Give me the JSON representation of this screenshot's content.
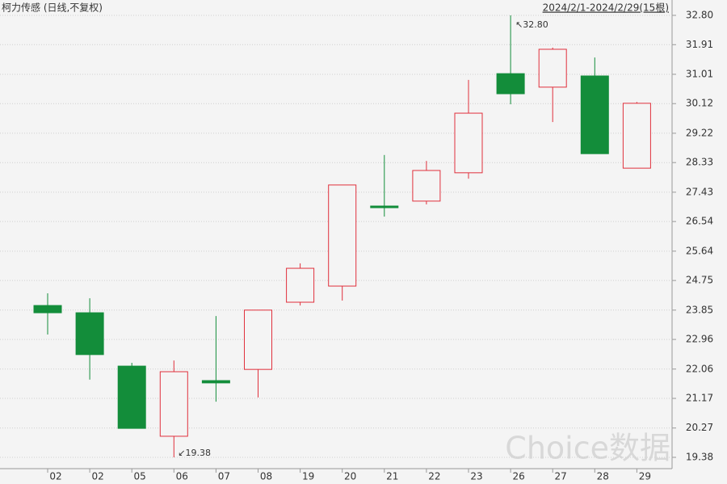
{
  "chart_data": {
    "type": "candlestick",
    "title": "柯力传感 (日线,不复权)",
    "range_label": "2024/2/1-2024/2/29(15根)",
    "watermark": "Choice数据",
    "categories": [
      "02",
      "02",
      "05",
      "06",
      "07",
      "08",
      "19",
      "20",
      "21",
      "22",
      "23",
      "26",
      "27",
      "28",
      "29"
    ],
    "open": [
      23.99,
      23.77,
      22.15,
      20.02,
      21.71,
      22.05,
      24.09,
      24.58,
      27.01,
      27.16,
      28.02,
      31.03,
      30.62,
      30.96,
      28.16
    ],
    "high": [
      24.36,
      24.21,
      22.25,
      22.32,
      23.67,
      23.85,
      25.27,
      27.65,
      28.56,
      28.38,
      30.84,
      32.8,
      31.82,
      31.52,
      30.17
    ],
    "low": [
      23.11,
      21.74,
      20.26,
      19.38,
      21.07,
      21.2,
      23.99,
      24.14,
      26.69,
      27.06,
      27.84,
      30.1,
      29.56,
      28.6,
      28.16
    ],
    "close": [
      23.77,
      22.5,
      20.26,
      21.98,
      21.64,
      23.85,
      25.12,
      27.65,
      26.96,
      28.09,
      29.83,
      30.42,
      31.77,
      28.6,
      30.13
    ],
    "up_color": "#e0303c",
    "down_color": "#138d3a",
    "ylim": [
      19.38,
      32.8
    ],
    "yticks": [
      {
        "value": 32.8,
        "label": "32.80"
      },
      31.91,
      31.01,
      30.12,
      29.22,
      28.33,
      27.43,
      26.54,
      25.64,
      24.75,
      23.85,
      22.96,
      22.06,
      21.17,
      20.27,
      19.38
    ],
    "grid": true,
    "max_annotation": "↖32.80",
    "min_annotation": "↙19.38"
  }
}
